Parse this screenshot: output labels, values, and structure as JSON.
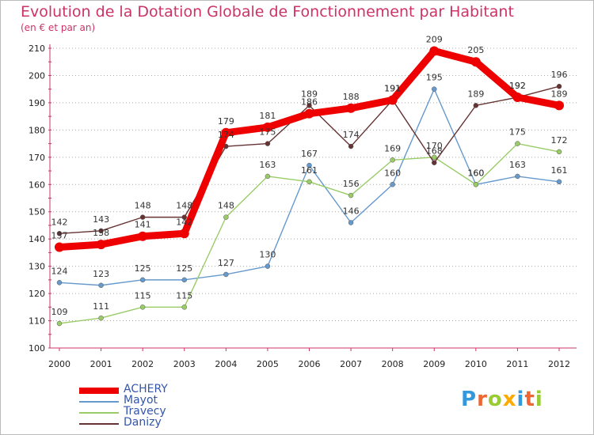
{
  "title": "Evolution de la Dotation Globale de Fonctionnement par Habitant",
  "subtitle": "(en € et par an)",
  "logo": {
    "text": "Proxiti",
    "colors": [
      "#3399dd",
      "#ee6633",
      "#99cc33",
      "#ffaa00",
      "#3399dd",
      "#ee6633",
      "#99cc33"
    ]
  },
  "colors": {
    "title": "#cc3366",
    "axis": "#cc3366",
    "tick_text": "#222222",
    "grid": "#aaaaaa",
    "value_text": "#333333"
  },
  "chart_data": {
    "type": "line",
    "title": "Evolution de la Dotation Globale de Fonctionnement par Habitant",
    "subtitle": "(en € et par an)",
    "categories": [
      "2000",
      "2001",
      "2002",
      "2003",
      "2004",
      "2005",
      "2006",
      "2007",
      "2008",
      "2009",
      "2010",
      "2011",
      "2012"
    ],
    "ylim": [
      100,
      210
    ],
    "yticks": [
      100,
      110,
      120,
      130,
      140,
      150,
      160,
      170,
      180,
      190,
      200,
      210
    ],
    "grid": "horizontal dotted",
    "legend_position": "bottom-left",
    "series": [
      {
        "name": "ACHERY",
        "color": "#ee0000",
        "values": [
          137,
          138,
          141,
          142,
          179,
          181,
          186,
          188,
          191,
          209,
          205,
          192,
          189
        ]
      },
      {
        "name": "Mayot",
        "color": "#6699cc",
        "values": [
          124,
          123,
          125,
          125,
          127,
          130,
          167,
          146,
          160,
          195,
          160,
          163,
          161
        ]
      },
      {
        "name": "Travecy",
        "color": "#99cc66",
        "values": [
          109,
          111,
          115,
          115,
          148,
          163,
          161,
          156,
          169,
          170,
          160,
          175,
          172
        ]
      },
      {
        "name": "Danizy",
        "color": "#663333",
        "values": [
          142,
          143,
          148,
          148,
          174,
          175,
          189,
          174,
          191,
          168,
          189,
          192,
          196
        ]
      }
    ]
  }
}
